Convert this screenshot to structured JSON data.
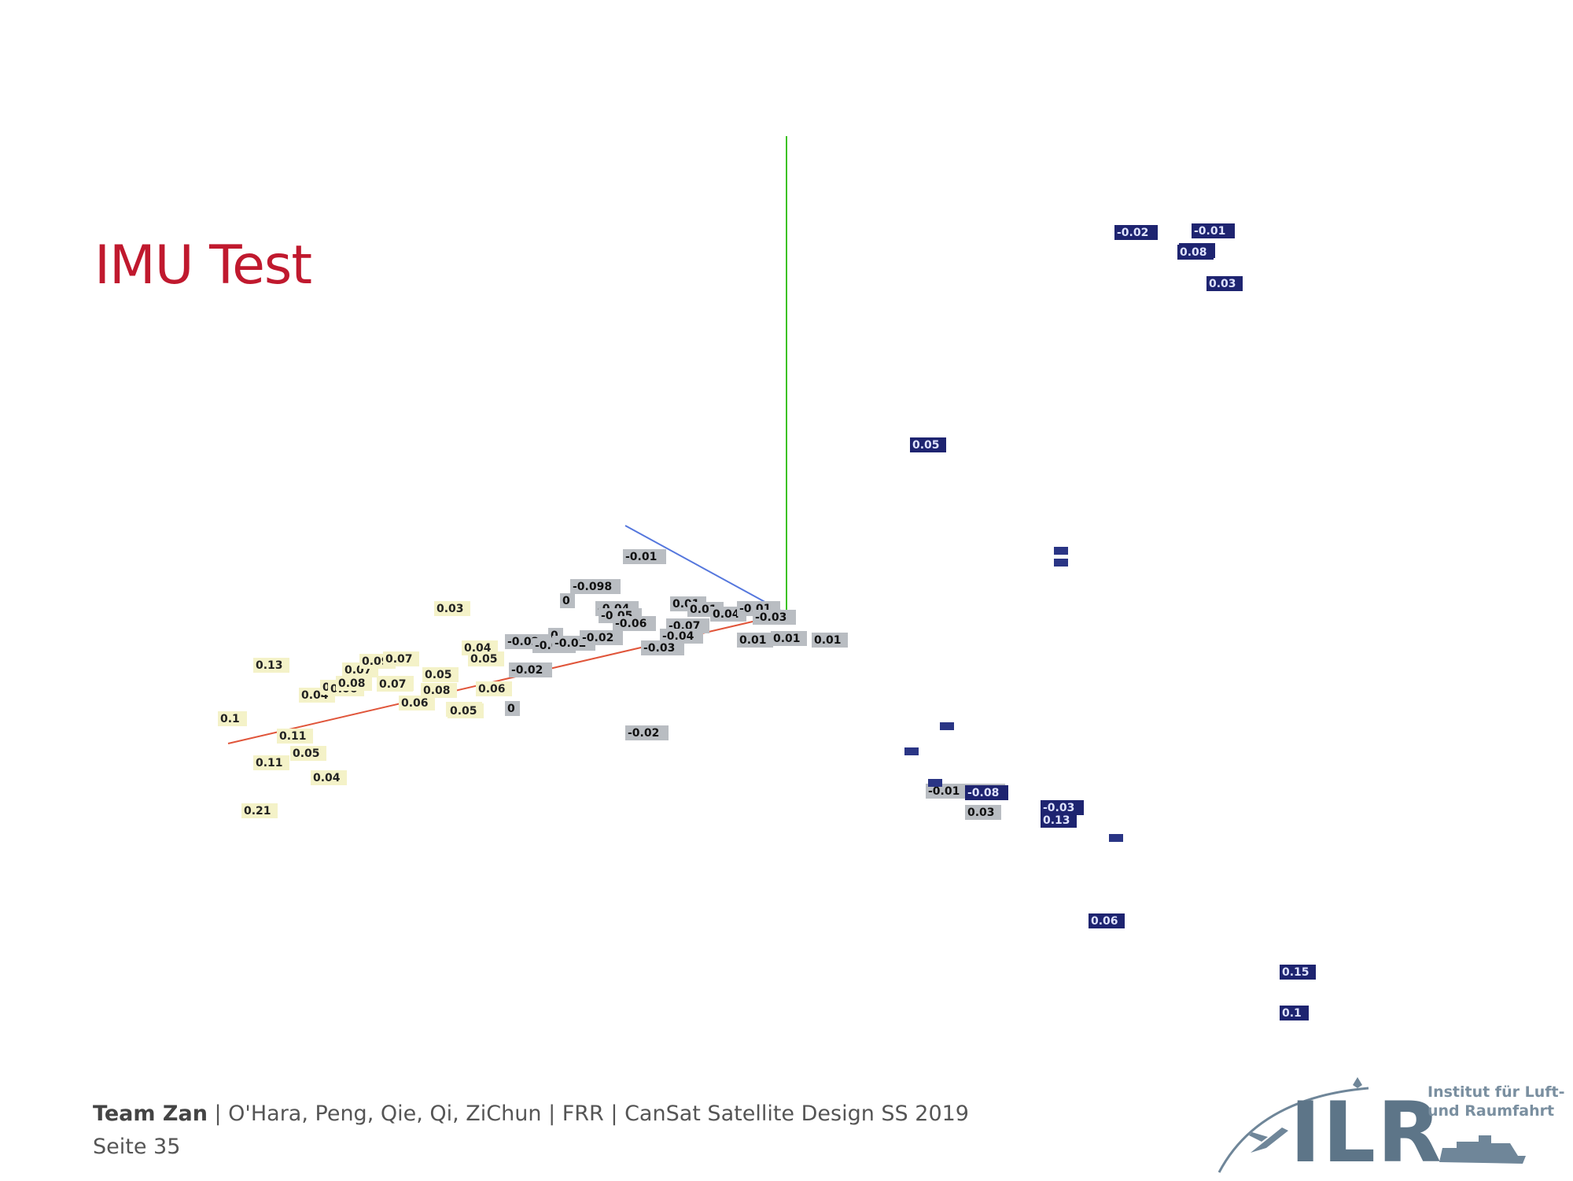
{
  "slide": {
    "title": "IMU Test"
  },
  "footer": {
    "team": "Team Zan",
    "rest": " | O'Hara, Peng, Qie, Qi, ZiChun | FRR | CanSat Satellite Design SS 2019",
    "page": "Seite 35"
  },
  "logo": {
    "word": "ILR",
    "line1": "Institut für Luft-",
    "line2": "und Raumfahrt"
  },
  "colors": {
    "title": "#c0192e",
    "axis_x": "#e0553a",
    "axis_y": "#3cc21e",
    "axis_z": "#5577dd",
    "low_value_label_bg": "#f4f2c8",
    "mid_value_label_bg": "#b9bdc2",
    "high_value_label_bg": "#1e2470"
  },
  "chart_data": {
    "type": "scatter",
    "title": "",
    "projection": "3d",
    "axes": [
      "x",
      "y",
      "z"
    ],
    "label_color_scale": "light yellow for the first samples, grey in the middle, dark navy for the last samples",
    "point_labels": [
      "0.1",
      "0.11",
      "0.11",
      "0.21",
      "0.05",
      "0.04",
      "0.13",
      "0.04",
      "0.04",
      "0.06",
      "0.08",
      "0.07",
      "0.09",
      "0.07",
      "0.08",
      "0.07",
      "0.06",
      "0.05",
      "0.08",
      "0.06",
      "0.05",
      "0.04",
      "0.05",
      "0.06",
      "0.03",
      "0",
      "-0.02",
      "-0.02",
      "-0.02",
      "0",
      "-0.02",
      "-0.098",
      "0",
      "-0.04",
      "-0.05",
      "-0.06",
      "-0.02",
      "-0.01",
      "-0.07",
      "-0.04",
      "-0.03",
      "0.01",
      "0.01",
      "0.04",
      "-0.01",
      "-0.03",
      "0.01",
      "0.01",
      "0.01",
      "-0.02",
      "-0.01",
      "0.04",
      "0.03",
      "0.05",
      "-0.02",
      "0.15",
      "0.1",
      "-0.01",
      "0.03",
      "-0.03",
      "0.13",
      "0.06",
      "-0.08",
      "0.08",
      "0.03"
    ]
  }
}
